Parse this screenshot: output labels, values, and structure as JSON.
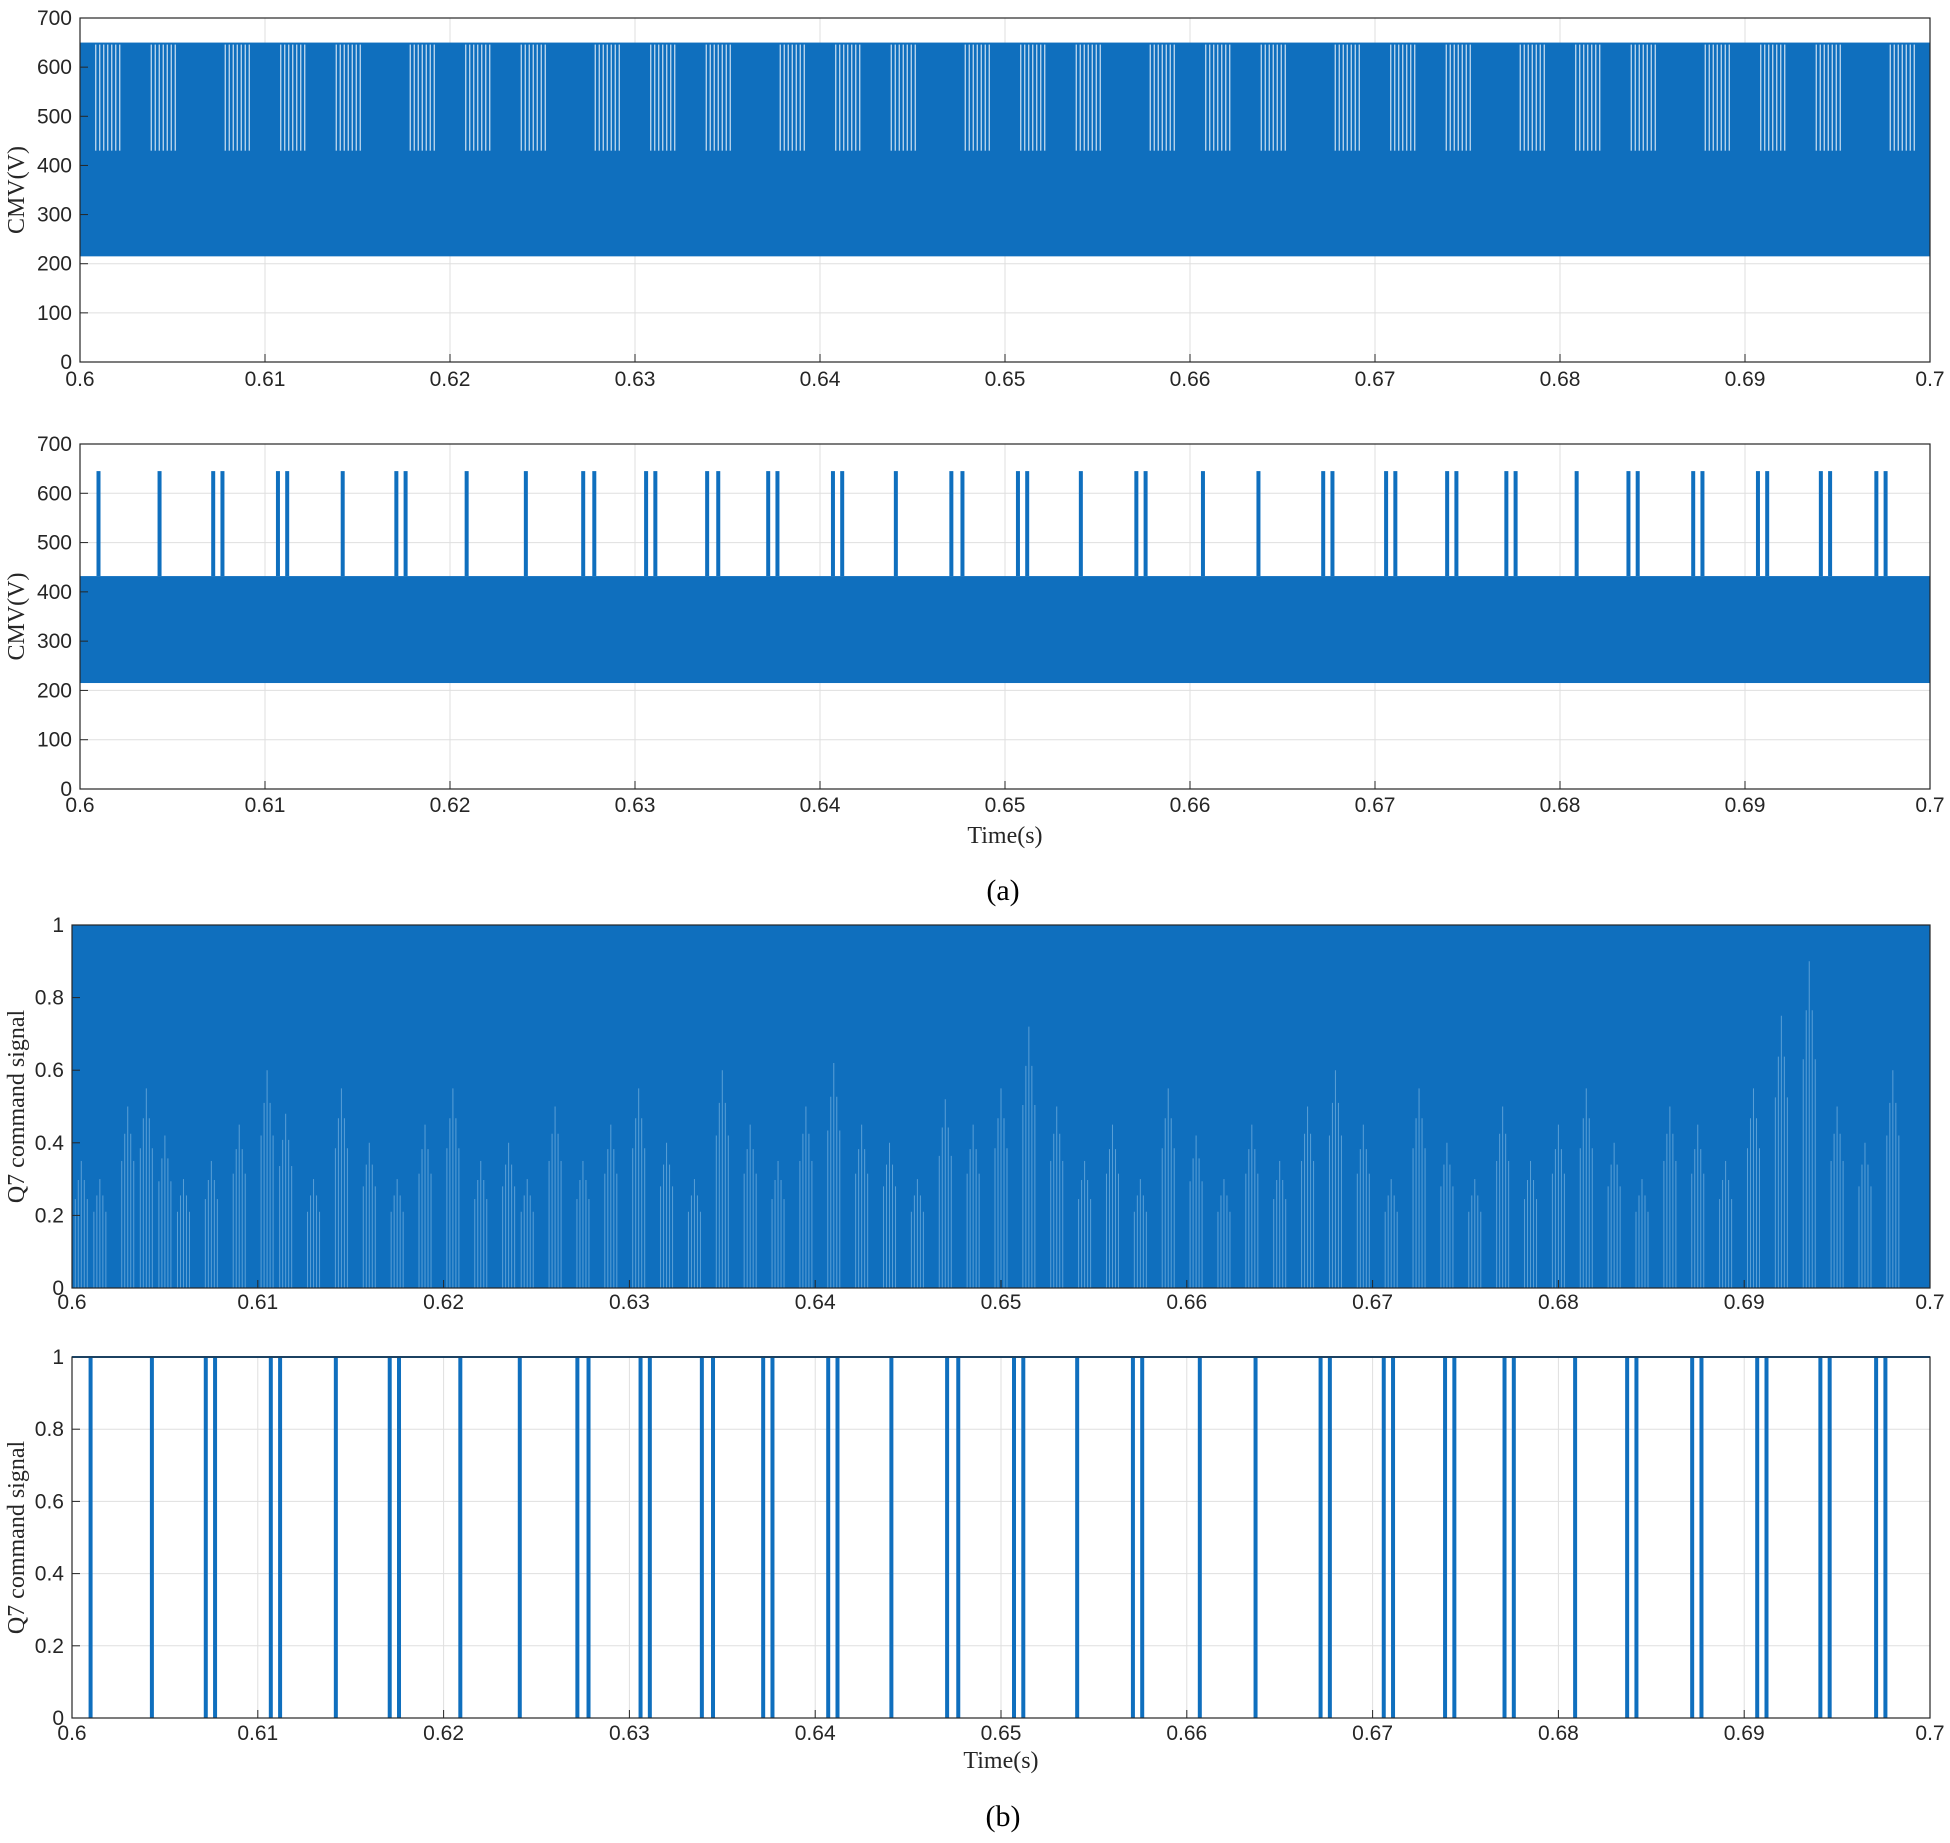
{
  "figure": {
    "caption_a": "(a)",
    "caption_b": "(b)"
  },
  "chart_data": [
    {
      "type": "line",
      "title": "",
      "xlabel": "",
      "ylabel": "CMV(V)",
      "xlim": [
        0.6,
        0.7
      ],
      "ylim": [
        0,
        700
      ],
      "xticks": [
        0.6,
        0.61,
        0.62,
        0.63,
        0.64,
        0.65,
        0.66,
        0.67,
        0.68,
        0.69,
        0.7
      ],
      "xtick_labels": [
        "0.6",
        "0.61",
        "0.62",
        "0.63",
        "0.64",
        "0.65",
        "0.66",
        "0.67",
        "0.68",
        "0.69",
        "0.7"
      ],
      "yticks": [
        0,
        100,
        200,
        300,
        400,
        500,
        600,
        700
      ],
      "ytick_labels": [
        "0",
        "100",
        "200",
        "300",
        "400",
        "500",
        "600",
        "700"
      ],
      "grid": true,
      "color": "#0F6FBE",
      "series_band": {
        "x_range": [
          0.6,
          0.7
        ],
        "min": 215,
        "max": 650
      },
      "gaps": {
        "style": "band-gap",
        "low": 430,
        "high": 650,
        "x": [
          0.6015,
          0.6045,
          0.6085,
          0.6115,
          0.6145,
          0.6185,
          0.6215,
          0.6245,
          0.6285,
          0.6315,
          0.6345,
          0.6385,
          0.6415,
          0.6445,
          0.6485,
          0.6515,
          0.6545,
          0.6585,
          0.6615,
          0.6645,
          0.6685,
          0.6715,
          0.6745,
          0.6785,
          0.6815,
          0.6845,
          0.6885,
          0.6915,
          0.6945,
          0.6985
        ]
      }
    },
    {
      "type": "line",
      "title": "",
      "xlabel": "Time(s)",
      "ylabel": "CMV(V)",
      "xlim": [
        0.6,
        0.7
      ],
      "ylim": [
        0,
        700
      ],
      "xticks": [
        0.6,
        0.61,
        0.62,
        0.63,
        0.64,
        0.65,
        0.66,
        0.67,
        0.68,
        0.69,
        0.7
      ],
      "xtick_labels": [
        "0.6",
        "0.61",
        "0.62",
        "0.63",
        "0.64",
        "0.65",
        "0.66",
        "0.67",
        "0.68",
        "0.69",
        "0.7"
      ],
      "yticks": [
        0,
        100,
        200,
        300,
        400,
        500,
        600,
        700
      ],
      "ytick_labels": [
        "0",
        "100",
        "200",
        "300",
        "400",
        "500",
        "600",
        "700"
      ],
      "grid": true,
      "color": "#0F6FBE",
      "series_band": {
        "x_range": [
          0.6,
          0.7
        ],
        "min": 215,
        "max": 432
      },
      "spikes": {
        "low": 432,
        "high": 645,
        "x": [
          0.601,
          0.6043,
          0.6072,
          0.6077,
          0.6107,
          0.6112,
          0.6142,
          0.6171,
          0.6176,
          0.6209,
          0.6241,
          0.6272,
          0.6278,
          0.6306,
          0.6311,
          0.6339,
          0.6345,
          0.6372,
          0.6377,
          0.6407,
          0.6412,
          0.6441,
          0.6471,
          0.6477,
          0.6507,
          0.6512,
          0.6541,
          0.6571,
          0.6576,
          0.6607,
          0.6637,
          0.6672,
          0.6677,
          0.6706,
          0.6711,
          0.6739,
          0.6744,
          0.6771,
          0.6776,
          0.6809,
          0.6837,
          0.6842,
          0.6872,
          0.6877,
          0.6907,
          0.6912,
          0.6941,
          0.6946,
          0.6971,
          0.6976
        ]
      }
    },
    {
      "type": "line",
      "title": "",
      "xlabel": "",
      "ylabel": "Q7 command signal",
      "xlim": [
        0.6,
        0.7
      ],
      "ylim": [
        0,
        1
      ],
      "xticks": [
        0.6,
        0.61,
        0.62,
        0.63,
        0.64,
        0.65,
        0.66,
        0.67,
        0.68,
        0.69,
        0.7
      ],
      "xtick_labels": [
        "0.6",
        "0.61",
        "0.62",
        "0.63",
        "0.64",
        "0.65",
        "0.66",
        "0.67",
        "0.68",
        "0.69",
        "0.7"
      ],
      "yticks": [
        0,
        0.2,
        0.4,
        0.6,
        0.8,
        1
      ],
      "ytick_labels": [
        "0",
        "0.2",
        "0.4",
        "0.6",
        "0.8",
        "1"
      ],
      "grid": true,
      "color": "#0F6FBE",
      "series_band": {
        "x_range": [
          0.6,
          0.7
        ],
        "min": 0,
        "max": 1
      },
      "streaks": {
        "low": 0,
        "x": [
          0.6005,
          0.6015,
          0.603,
          0.604,
          0.605,
          0.606,
          0.6075,
          0.609,
          0.6105,
          0.6115,
          0.613,
          0.6145,
          0.616,
          0.6175,
          0.619,
          0.6205,
          0.622,
          0.6235,
          0.6245,
          0.626,
          0.6275,
          0.629,
          0.6305,
          0.632,
          0.6335,
          0.635,
          0.6365,
          0.638,
          0.6395,
          0.641,
          0.6425,
          0.644,
          0.6455,
          0.647,
          0.6485,
          0.65,
          0.6515,
          0.653,
          0.6545,
          0.656,
          0.6575,
          0.659,
          0.6605,
          0.662,
          0.6635,
          0.665,
          0.6665,
          0.668,
          0.6695,
          0.671,
          0.6725,
          0.674,
          0.6755,
          0.677,
          0.6785,
          0.68,
          0.6815,
          0.683,
          0.6845,
          0.686,
          0.6875,
          0.689,
          0.6905,
          0.692,
          0.6935,
          0.695,
          0.6965,
          0.698
        ],
        "high": [
          0.35,
          0.3,
          0.5,
          0.55,
          0.42,
          0.3,
          0.35,
          0.45,
          0.6,
          0.48,
          0.3,
          0.55,
          0.4,
          0.3,
          0.45,
          0.55,
          0.35,
          0.4,
          0.3,
          0.5,
          0.35,
          0.45,
          0.55,
          0.4,
          0.3,
          0.6,
          0.45,
          0.35,
          0.5,
          0.62,
          0.45,
          0.4,
          0.3,
          0.52,
          0.45,
          0.55,
          0.72,
          0.5,
          0.35,
          0.45,
          0.3,
          0.55,
          0.42,
          0.3,
          0.45,
          0.35,
          0.5,
          0.6,
          0.45,
          0.3,
          0.55,
          0.4,
          0.3,
          0.5,
          0.35,
          0.45,
          0.55,
          0.4,
          0.3,
          0.5,
          0.45,
          0.35,
          0.55,
          0.75,
          0.9,
          0.5,
          0.4,
          0.6
        ]
      }
    },
    {
      "type": "line",
      "title": "",
      "xlabel": "Time(s)",
      "ylabel": "Q7 command signal",
      "xlim": [
        0.6,
        0.7
      ],
      "ylim": [
        0,
        1
      ],
      "xticks": [
        0.6,
        0.61,
        0.62,
        0.63,
        0.64,
        0.65,
        0.66,
        0.67,
        0.68,
        0.69,
        0.7
      ],
      "xtick_labels": [
        "0.6",
        "0.61",
        "0.62",
        "0.63",
        "0.64",
        "0.65",
        "0.66",
        "0.67",
        "0.68",
        "0.69",
        "0.7"
      ],
      "yticks": [
        0,
        0.2,
        0.4,
        0.6,
        0.8,
        1
      ],
      "ytick_labels": [
        "0",
        "0.2",
        "0.4",
        "0.6",
        "0.8",
        "1"
      ],
      "grid": true,
      "color": "#0F6FBE",
      "baseline": 1,
      "pulses": {
        "low": 0,
        "high": 1,
        "x": [
          0.601,
          0.6043,
          0.6072,
          0.6077,
          0.6107,
          0.6112,
          0.6142,
          0.6171,
          0.6176,
          0.6209,
          0.6241,
          0.6272,
          0.6278,
          0.6306,
          0.6311,
          0.6339,
          0.6345,
          0.6372,
          0.6377,
          0.6407,
          0.6412,
          0.6441,
          0.6471,
          0.6477,
          0.6507,
          0.6512,
          0.6541,
          0.6571,
          0.6576,
          0.6607,
          0.6637,
          0.6672,
          0.6677,
          0.6706,
          0.6711,
          0.6739,
          0.6744,
          0.6771,
          0.6776,
          0.6809,
          0.6837,
          0.6842,
          0.6872,
          0.6877,
          0.6907,
          0.6912,
          0.6941,
          0.6946,
          0.6971,
          0.6976
        ]
      }
    }
  ]
}
